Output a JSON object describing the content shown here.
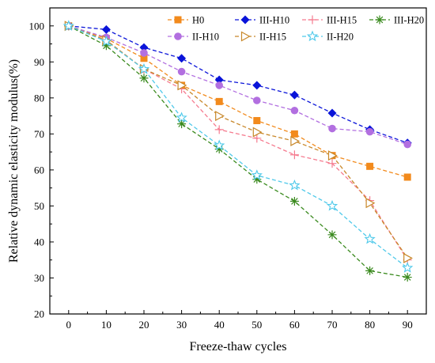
{
  "chart_data": {
    "type": "line",
    "xlabel": "Freeze-thaw cycles",
    "ylabel": "Relative dynamic elasticity modulus(%)",
    "xlim": [
      -5,
      95
    ],
    "ylim": [
      20,
      105
    ],
    "x_ticks": [
      0,
      10,
      20,
      30,
      40,
      50,
      60,
      70,
      80,
      90
    ],
    "y_ticks": [
      20,
      30,
      40,
      50,
      60,
      70,
      80,
      90,
      100
    ],
    "grid": false,
    "legend_placement": "top-right",
    "x": [
      0,
      10,
      20,
      30,
      40,
      50,
      60,
      70,
      80,
      90
    ],
    "series": [
      {
        "name": "H0",
        "color": "#f28a1c",
        "marker": "square",
        "values": [
          100,
          96.5,
          91,
          83.5,
          79,
          73.7,
          70,
          64,
          61,
          58
        ]
      },
      {
        "name": "III-H10",
        "color": "#0a14d9",
        "marker": "diamond",
        "values": [
          100,
          99,
          94,
          91,
          85,
          83.5,
          80.8,
          75.8,
          71.2,
          67.5
        ]
      },
      {
        "name": "III-H15",
        "color": "#f57b8f",
        "marker": "plus",
        "values": [
          100,
          96,
          88,
          82.5,
          71.2,
          68.8,
          64.2,
          61.8,
          51.5,
          35
        ]
      },
      {
        "name": "III-H20",
        "color": "#3a8a1e",
        "marker": "asterisk",
        "values": [
          100,
          94.5,
          85.5,
          72.8,
          65.8,
          57.4,
          51.3,
          42,
          32,
          30.2
        ]
      },
      {
        "name": "II-H10",
        "color": "#b26fe0",
        "marker": "circle",
        "values": [
          100,
          96.8,
          92.5,
          87.3,
          83.5,
          79.3,
          76.5,
          71.5,
          70.6,
          67.1
        ]
      },
      {
        "name": "II-H15",
        "color": "#c8882a",
        "marker": "triangle-right",
        "values": [
          100,
          96,
          88,
          83.5,
          75,
          70.5,
          68,
          64,
          50.8,
          35.5
        ]
      },
      {
        "name": "II-H20",
        "color": "#4fc9ea",
        "marker": "star",
        "values": [
          100,
          95.7,
          88,
          74.5,
          66.8,
          58.5,
          55.7,
          50,
          40.8,
          32.8
        ]
      }
    ]
  }
}
